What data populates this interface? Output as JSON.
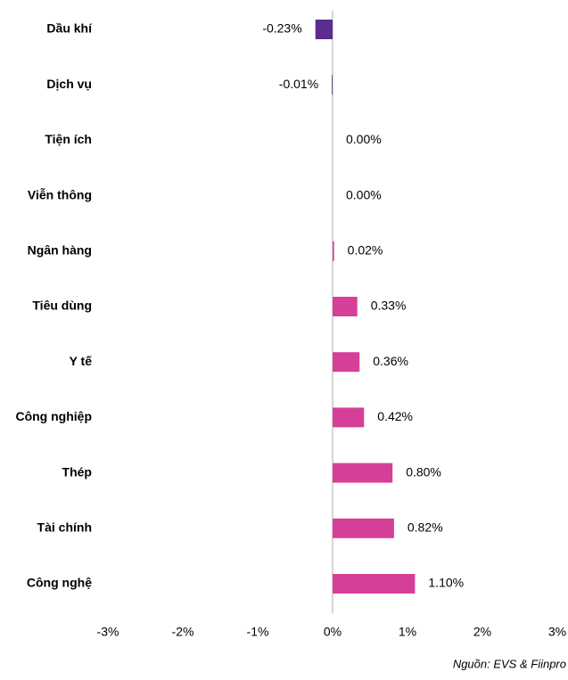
{
  "chart_data": {
    "type": "hbar",
    "categories": [
      "Dầu khí",
      "Dịch vụ",
      "Tiện ích",
      "Viễn thông",
      "Ngân hàng",
      "Tiêu dùng",
      "Y tế",
      "Công nghiệp",
      "Thép",
      "Tài chính",
      "Công nghệ"
    ],
    "values": [
      -0.23,
      -0.01,
      0.0,
      0.0,
      0.02,
      0.33,
      0.36,
      0.42,
      0.8,
      0.82,
      1.1
    ],
    "value_labels": [
      "-0.23%",
      "-0.01%",
      "0.00%",
      "0.00%",
      "0.02%",
      "0.33%",
      "0.36%",
      "0.42%",
      "0.80%",
      "0.82%",
      "1.10%"
    ],
    "negative_color": "#5b2d8e",
    "positive_color": "#d63f97",
    "xlim": [
      -3,
      3
    ],
    "xticks": [
      {
        "value": -3,
        "label": "-3%"
      },
      {
        "value": -2,
        "label": "-2%"
      },
      {
        "value": -1,
        "label": "-1%"
      },
      {
        "value": 0,
        "label": "0%"
      },
      {
        "value": 1,
        "label": "1%"
      },
      {
        "value": 2,
        "label": "2%"
      },
      {
        "value": 3,
        "label": "3%"
      }
    ],
    "source": "Nguồn: EVS & Fiinpro"
  }
}
